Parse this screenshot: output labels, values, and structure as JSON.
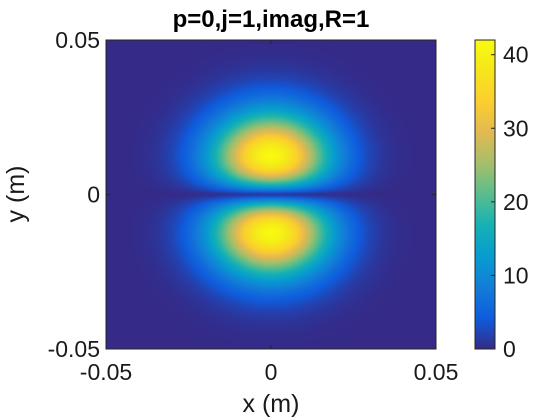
{
  "chart_data": {
    "type": "heatmap",
    "title": "p=0,j=1,imag,R=1",
    "xlabel": "x (m)",
    "ylabel": "y (m)",
    "xlim": [
      -0.05,
      0.05
    ],
    "ylim": [
      -0.05,
      0.05
    ],
    "x_ticks": [
      {
        "value": -0.05,
        "label": "-0.05"
      },
      {
        "value": 0,
        "label": "0"
      },
      {
        "value": 0.05,
        "label": "0.05"
      }
    ],
    "y_ticks": [
      {
        "value": -0.05,
        "label": "-0.05"
      },
      {
        "value": 0,
        "label": "0"
      },
      {
        "value": 0.05,
        "label": "0.05"
      }
    ],
    "colorbar": {
      "min": 0,
      "max": 42,
      "ticks": [
        {
          "value": 0,
          "label": "0"
        },
        {
          "value": 10,
          "label": "10"
        },
        {
          "value": 20,
          "label": "20"
        },
        {
          "value": 30,
          "label": "30"
        },
        {
          "value": 40,
          "label": "40"
        }
      ],
      "colormap": "parula"
    },
    "field": {
      "peak_value": 41.5,
      "peaks": [
        {
          "x": 0,
          "y": 0.0125
        },
        {
          "x": 0,
          "y": -0.0125
        }
      ],
      "zero_line": "y = 0",
      "background_color": "#352a87"
    },
    "grid": false
  }
}
